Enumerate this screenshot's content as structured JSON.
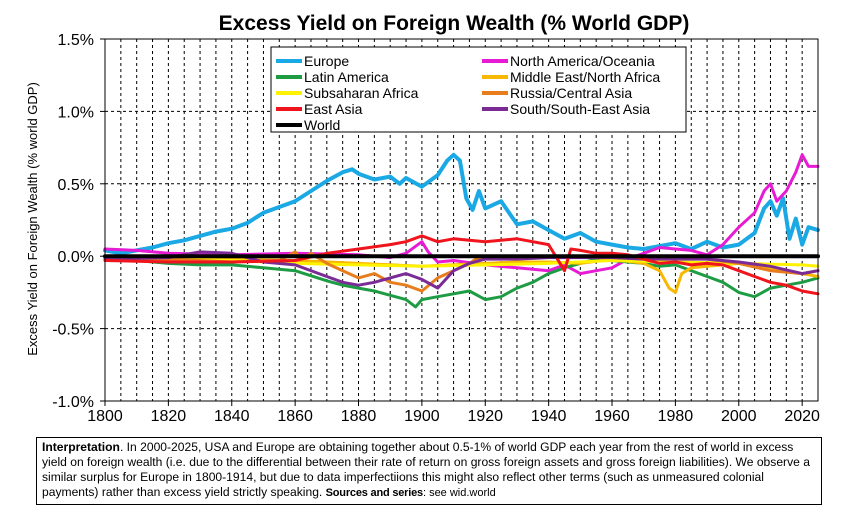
{
  "chart_data": {
    "type": "line",
    "title": "Excess Yield on Foreign Wealth (% World GDP)",
    "ylabel": "Excess Yield on Foreign Wealth (% world GDP)",
    "xlabel": "",
    "xlim": [
      1800,
      2025
    ],
    "ylim": [
      -1.0,
      1.5
    ],
    "x_ticks": [
      1800,
      1820,
      1840,
      1860,
      1880,
      1900,
      1920,
      1940,
      1960,
      1980,
      2000,
      2020
    ],
    "x_tick_labels": [
      "1800",
      "1820",
      "1840",
      "1860",
      "1880",
      "1900",
      "1920",
      "1940",
      "1960",
      "1980",
      "2000",
      "2020"
    ],
    "y_ticks": [
      -1.0,
      -0.5,
      0.0,
      0.5,
      1.0,
      1.5
    ],
    "y_tick_labels": [
      "-1.0%",
      "-0.5%",
      "0.0%",
      "0.5%",
      "1.0%",
      "1.5%"
    ],
    "grid": "dashed-major",
    "legend_position": "top",
    "series": [
      {
        "name": "Europe",
        "color": "#1BA9E5",
        "width": 4,
        "x": [
          1800,
          1805,
          1810,
          1815,
          1820,
          1825,
          1830,
          1835,
          1840,
          1845,
          1850,
          1855,
          1860,
          1865,
          1870,
          1875,
          1878,
          1880,
          1885,
          1890,
          1893,
          1895,
          1900,
          1905,
          1908,
          1910,
          1912,
          1914,
          1916,
          1918,
          1920,
          1925,
          1930,
          1935,
          1940,
          1945,
          1950,
          1955,
          1960,
          1965,
          1970,
          1975,
          1980,
          1985,
          1990,
          1995,
          2000,
          2005,
          2008,
          2010,
          2012,
          2014,
          2016,
          2018,
          2020,
          2022,
          2025
        ],
        "y": [
          0.04,
          0.02,
          0.04,
          0.06,
          0.09,
          0.11,
          0.14,
          0.17,
          0.19,
          0.23,
          0.3,
          0.34,
          0.38,
          0.45,
          0.52,
          0.58,
          0.6,
          0.57,
          0.53,
          0.55,
          0.5,
          0.54,
          0.48,
          0.56,
          0.66,
          0.7,
          0.66,
          0.4,
          0.32,
          0.45,
          0.33,
          0.38,
          0.22,
          0.24,
          0.18,
          0.12,
          0.16,
          0.1,
          0.08,
          0.06,
          0.05,
          0.07,
          0.09,
          0.05,
          0.1,
          0.06,
          0.08,
          0.16,
          0.33,
          0.38,
          0.28,
          0.4,
          0.12,
          0.26,
          0.08,
          0.2,
          0.18
        ]
      },
      {
        "name": "North America/Oceania",
        "color": "#E81BD5",
        "width": 3,
        "x": [
          1800,
          1810,
          1820,
          1840,
          1860,
          1880,
          1890,
          1895,
          1900,
          1902,
          1905,
          1910,
          1920,
          1930,
          1940,
          1945,
          1950,
          1955,
          1960,
          1965,
          1970,
          1975,
          1980,
          1985,
          1990,
          1995,
          2000,
          2005,
          2008,
          2010,
          2012,
          2015,
          2018,
          2020,
          2022,
          2025
        ],
        "y": [
          0.05,
          0.04,
          0.02,
          0.01,
          0.02,
          0.01,
          -0.01,
          0.02,
          0.1,
          0.03,
          -0.04,
          -0.03,
          -0.06,
          -0.08,
          -0.1,
          -0.06,
          -0.12,
          -0.1,
          -0.08,
          -0.02,
          0.02,
          0.06,
          0.05,
          0.04,
          0.01,
          0.08,
          0.2,
          0.3,
          0.45,
          0.5,
          0.38,
          0.45,
          0.58,
          0.7,
          0.62,
          0.62
        ]
      },
      {
        "name": "Latin America",
        "color": "#1E9C44",
        "width": 3,
        "x": [
          1800,
          1810,
          1820,
          1830,
          1840,
          1850,
          1860,
          1870,
          1875,
          1880,
          1885,
          1890,
          1895,
          1898,
          1900,
          1905,
          1910,
          1915,
          1920,
          1925,
          1930,
          1935,
          1940,
          1945,
          1950,
          1955,
          1960,
          1965,
          1970,
          1975,
          1980,
          1985,
          1990,
          1995,
          2000,
          2005,
          2010,
          2015,
          2020,
          2025
        ],
        "y": [
          -0.02,
          -0.03,
          -0.05,
          -0.06,
          -0.06,
          -0.08,
          -0.1,
          -0.17,
          -0.2,
          -0.22,
          -0.24,
          -0.27,
          -0.3,
          -0.35,
          -0.3,
          -0.28,
          -0.26,
          -0.24,
          -0.3,
          -0.28,
          -0.22,
          -0.18,
          -0.12,
          -0.08,
          -0.05,
          -0.02,
          -0.03,
          -0.04,
          -0.05,
          -0.07,
          -0.06,
          -0.1,
          -0.14,
          -0.18,
          -0.25,
          -0.28,
          -0.22,
          -0.2,
          -0.18,
          -0.15
        ]
      },
      {
        "name": "Middle East/North Africa",
        "color": "#F9B800",
        "width": 3,
        "x": [
          1800,
          1820,
          1840,
          1860,
          1880,
          1900,
          1920,
          1930,
          1940,
          1950,
          1960,
          1970,
          1975,
          1978,
          1980,
          1982,
          1985,
          1990,
          2000,
          2010,
          2020,
          2025
        ],
        "y": [
          -0.02,
          -0.02,
          -0.02,
          -0.03,
          -0.05,
          -0.07,
          -0.05,
          -0.04,
          -0.04,
          -0.05,
          -0.02,
          -0.05,
          -0.1,
          -0.22,
          -0.25,
          -0.12,
          -0.08,
          -0.07,
          -0.05,
          -0.08,
          -0.12,
          -0.14
        ]
      },
      {
        "name": "Subsaharan Africa",
        "color": "#FFF200",
        "width": 3,
        "x": [
          1800,
          1820,
          1840,
          1860,
          1880,
          1900,
          1920,
          1940,
          1960,
          1980,
          2000,
          2020,
          2025
        ],
        "y": [
          -0.01,
          -0.02,
          -0.03,
          -0.05,
          -0.06,
          -0.07,
          -0.06,
          -0.05,
          -0.03,
          -0.04,
          -0.05,
          -0.06,
          -0.07
        ]
      },
      {
        "name": "Russia/Central Asia",
        "color": "#E87D1E",
        "width": 3,
        "x": [
          1800,
          1820,
          1840,
          1855,
          1860,
          1862,
          1865,
          1870,
          1875,
          1880,
          1885,
          1890,
          1895,
          1900,
          1905,
          1910,
          1915,
          1917,
          1920,
          1925,
          1930,
          1940,
          1950,
          1960,
          1970,
          1980,
          1990,
          2000,
          2010,
          2020,
          2025
        ],
        "y": [
          -0.01,
          -0.02,
          -0.04,
          -0.03,
          0.03,
          -0.02,
          0.02,
          -0.05,
          -0.1,
          -0.15,
          -0.12,
          -0.18,
          -0.2,
          -0.24,
          -0.15,
          -0.1,
          -0.05,
          -0.02,
          0.0,
          0.0,
          0.0,
          0.0,
          0.0,
          0.0,
          0.0,
          0.0,
          -0.02,
          -0.05,
          -0.1,
          -0.12,
          -0.1
        ]
      },
      {
        "name": "East Asia",
        "color": "#F0141C",
        "width": 3,
        "x": [
          1800,
          1820,
          1840,
          1860,
          1870,
          1880,
          1890,
          1895,
          1900,
          1905,
          1910,
          1920,
          1930,
          1940,
          1945,
          1947,
          1950,
          1955,
          1960,
          1965,
          1970,
          1975,
          1980,
          1985,
          1990,
          1995,
          2000,
          2005,
          2010,
          2015,
          2020,
          2025
        ],
        "y": [
          -0.03,
          -0.04,
          -0.04,
          -0.03,
          0.02,
          0.05,
          0.08,
          0.1,
          0.14,
          0.1,
          0.12,
          0.1,
          0.12,
          0.08,
          -0.1,
          0.05,
          0.04,
          0.02,
          0.02,
          0.01,
          -0.02,
          -0.05,
          -0.04,
          -0.06,
          -0.05,
          -0.06,
          -0.1,
          -0.14,
          -0.18,
          -0.2,
          -0.24,
          -0.26
        ]
      },
      {
        "name": "South/South-East Asia",
        "color": "#7A2B96",
        "width": 3,
        "x": [
          1800,
          1820,
          1830,
          1840,
          1850,
          1860,
          1870,
          1875,
          1880,
          1885,
          1890,
          1895,
          1900,
          1905,
          1910,
          1915,
          1920,
          1930,
          1940,
          1950,
          1960,
          1970,
          1980,
          1990,
          2000,
          2010,
          2020,
          2025
        ],
        "y": [
          -0.02,
          -0.01,
          0.03,
          0.02,
          -0.04,
          -0.06,
          -0.14,
          -0.18,
          -0.2,
          -0.18,
          -0.15,
          -0.12,
          -0.16,
          -0.22,
          -0.1,
          -0.05,
          -0.02,
          -0.02,
          -0.01,
          -0.01,
          -0.01,
          -0.02,
          -0.02,
          -0.02,
          -0.04,
          -0.07,
          -0.12,
          -0.1
        ]
      },
      {
        "name": "World",
        "color": "#000000",
        "width": 4,
        "x": [
          1800,
          2025
        ],
        "y": [
          0.0,
          0.0
        ]
      }
    ]
  },
  "interpretation": {
    "label": "Interpretation",
    "text": ". In 2000-2025, USA and Europe are obtaining together about 0.5-1% of world GDP each year from the rest of world in excess yield on foreign wealth (i.e. due to the differential between their rate of return on gross foreign assets and gross foreign liabilities). We observe a similar surplus for Europe in 1800-1914, but due to data imperfectiions this might also reflect other terms (such as unmeasured colonial payments) rather than excess yield strictly speaking. ",
    "sources_label": "Sources and series",
    "sources_text": ": see wid.world"
  }
}
